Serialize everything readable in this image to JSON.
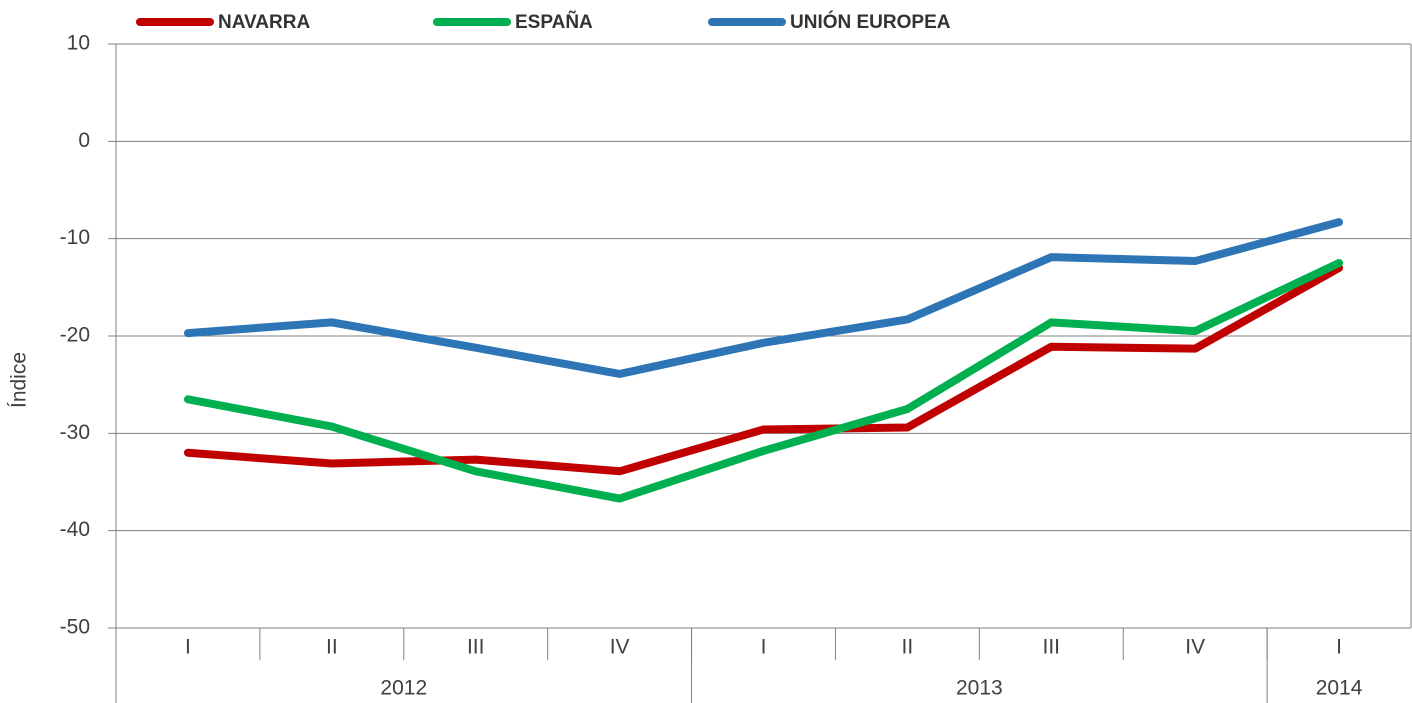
{
  "chart_data": {
    "type": "line",
    "y_label": "Índice",
    "categories": [
      "I",
      "II",
      "III",
      "IV",
      "I",
      "II",
      "III",
      "IV",
      "I"
    ],
    "x_group_labels": [
      "2012",
      "2013",
      "2014"
    ],
    "x_group_sizes": [
      4,
      4,
      1
    ],
    "series": [
      {
        "name": "NAVARRA",
        "color": "#c00000",
        "values": [
          -32.0,
          -33.1,
          -32.7,
          -33.9,
          -29.6,
          -29.4,
          -21.1,
          -21.3,
          -13.0
        ]
      },
      {
        "name": "ESPAÑA",
        "color": "#00b050",
        "values": [
          -26.5,
          -29.3,
          -33.9,
          -36.7,
          -31.8,
          -27.5,
          -18.6,
          -19.5,
          -12.5
        ]
      },
      {
        "name": "UNIÓN EUROPEA",
        "color": "#2e75b6",
        "values": [
          -19.7,
          -18.6,
          -21.2,
          -23.9,
          -20.7,
          -18.3,
          -11.9,
          -12.3,
          -8.3
        ]
      }
    ],
    "ylim": [
      -50,
      10
    ],
    "yticks": [
      -50,
      -40,
      -30,
      -20,
      -10,
      0,
      10
    ],
    "grid": true
  }
}
